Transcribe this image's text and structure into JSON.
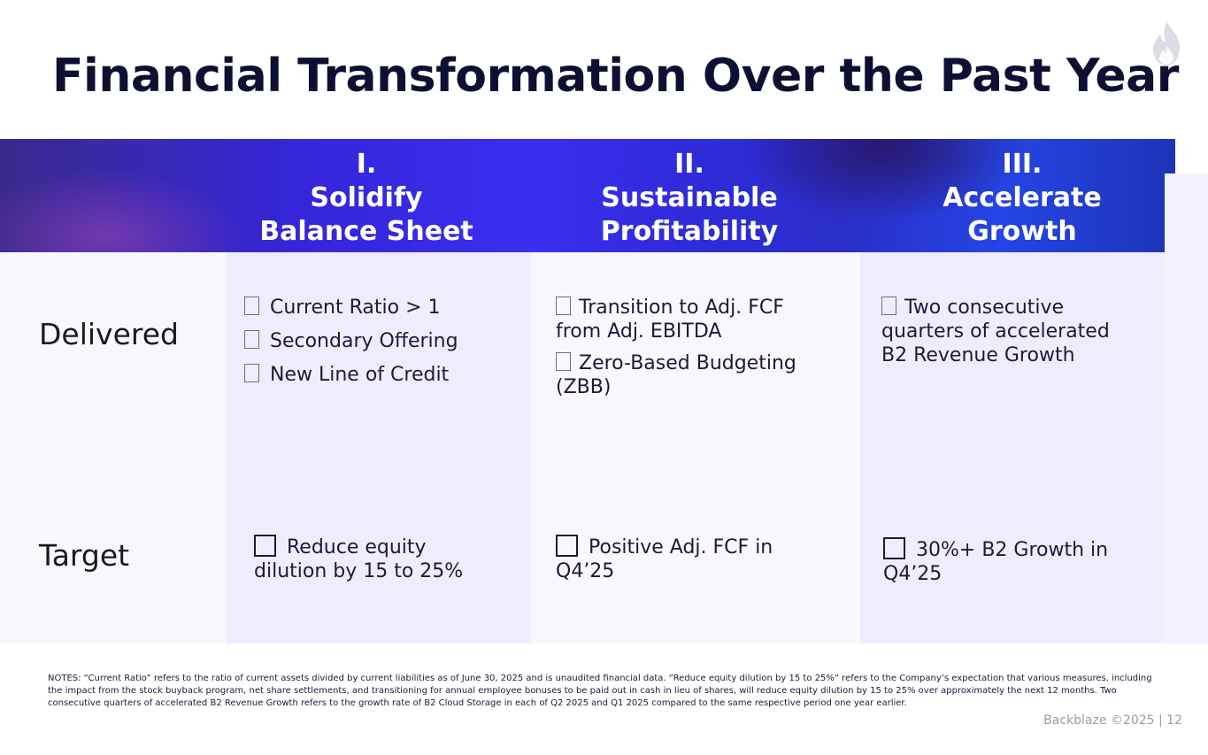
{
  "title": "Financial Transformation Over the Past Year",
  "logo_icon": "flame-icon",
  "columns": [
    {
      "numeral": "I.",
      "line1": "Solidify",
      "line2": "Balance Sheet"
    },
    {
      "numeral": "II.",
      "line1": "Sustainable",
      "line2": "Profitability"
    },
    {
      "numeral": "III.",
      "line1": "Accelerate",
      "line2": "Growth"
    }
  ],
  "rows": {
    "delivered": "Delivered",
    "target": "Target"
  },
  "delivered": {
    "col1": [
      "Current Ratio > 1",
      "Secondary Offering",
      "New Line of Credit"
    ],
    "col2": [
      "Transition to Adj. FCF from Adj. EBITDA",
      "Zero-Based Budgeting (ZBB)"
    ],
    "col3": [
      "Two consecutive quarters of accelerated B2 Revenue Growth"
    ]
  },
  "target": {
    "col1": "Reduce equity dilution by 15 to 25%",
    "col2": "Positive Adj. FCF in Q4’25",
    "col3": "30%+ B2 Growth in Q4’25"
  },
  "notes": "NOTES:   “Current Ratio” refers to the ratio of current assets divided by current liabilities as of June 30, 2025 and is unaudited financial data.  “Reduce equity dilution by 15 to 25%” refers to the Company’s expectation that various measures, including the impact from the stock buyback program, net share settlements, and transitioning for annual employee bonuses to be paid out in cash in lieu of shares, will reduce equity dilution by 15 to 25% over approximately the next 12 months.  Two consecutive quarters of accelerated B2 Revenue Growth refers to the growth rate of B2 Cloud Storage in each of Q2 2025 and Q1 2025 compared to the same respective period one year earlier.",
  "footer": "Backblaze ©2025  |  12"
}
